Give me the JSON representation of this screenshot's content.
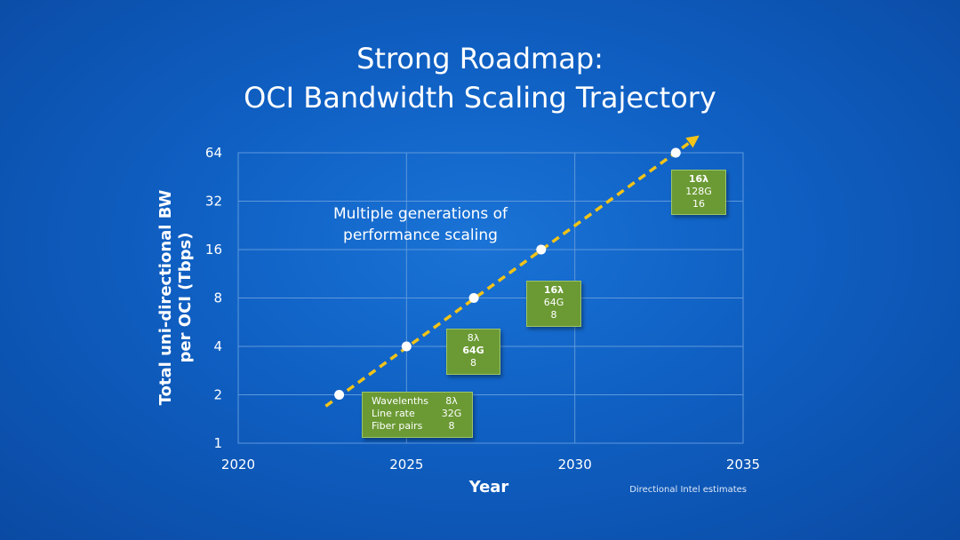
{
  "slide": {
    "title_line1": "Strong Roadmap:",
    "title_line2": "OCI Bandwidth Scaling Trajectory",
    "annotation": [
      "Multiple generations of",
      "performance scaling"
    ],
    "footnote": "Directional Intel estimates"
  },
  "legend_box": {
    "rows": [
      {
        "label": "Wavelenths",
        "value": "8λ"
      },
      {
        "label": "Line rate",
        "value": "32G"
      },
      {
        "label": "Fiber pairs",
        "value": "8"
      }
    ]
  },
  "generation_boxes": [
    {
      "lines": [
        "8λ",
        "64G",
        "8"
      ],
      "bold": [
        false,
        true,
        false
      ]
    },
    {
      "lines": [
        "16λ",
        "64G",
        "8"
      ],
      "bold": [
        true,
        false,
        false
      ]
    },
    {
      "lines": [
        "16λ",
        "128G",
        "16"
      ],
      "bold": [
        true,
        false,
        false
      ]
    }
  ],
  "chart_data": {
    "type": "scatter",
    "title": "Strong Roadmap: OCI Bandwidth Scaling Trajectory",
    "xlabel": "Year",
    "ylabel_lines": [
      "Total uni-directional BW",
      "per OCI (Tbps)"
    ],
    "xlim": [
      2020,
      2035
    ],
    "ylim": [
      1,
      64
    ],
    "yscale": "log2",
    "grid": true,
    "x_ticks": [
      2020,
      2025,
      2030,
      2035
    ],
    "y_ticks": [
      1,
      2,
      4,
      8,
      16,
      32,
      64
    ],
    "points": [
      {
        "x": 2023,
        "y": 2
      },
      {
        "x": 2025,
        "y": 4
      },
      {
        "x": 2027,
        "y": 8
      },
      {
        "x": 2029,
        "y": 16
      },
      {
        "x": 2033,
        "y": 64
      }
    ],
    "trend": {
      "style": "dashed-arrow",
      "color": "#f2c318",
      "from": {
        "x": 2022.6,
        "y": 1.7
      },
      "to": {
        "x": 2033.7,
        "y": 82
      }
    },
    "colors": {
      "grid": "#5e98dc",
      "points": "#ffffff",
      "trend": "#f2c318",
      "box": "#6b9a34"
    }
  }
}
